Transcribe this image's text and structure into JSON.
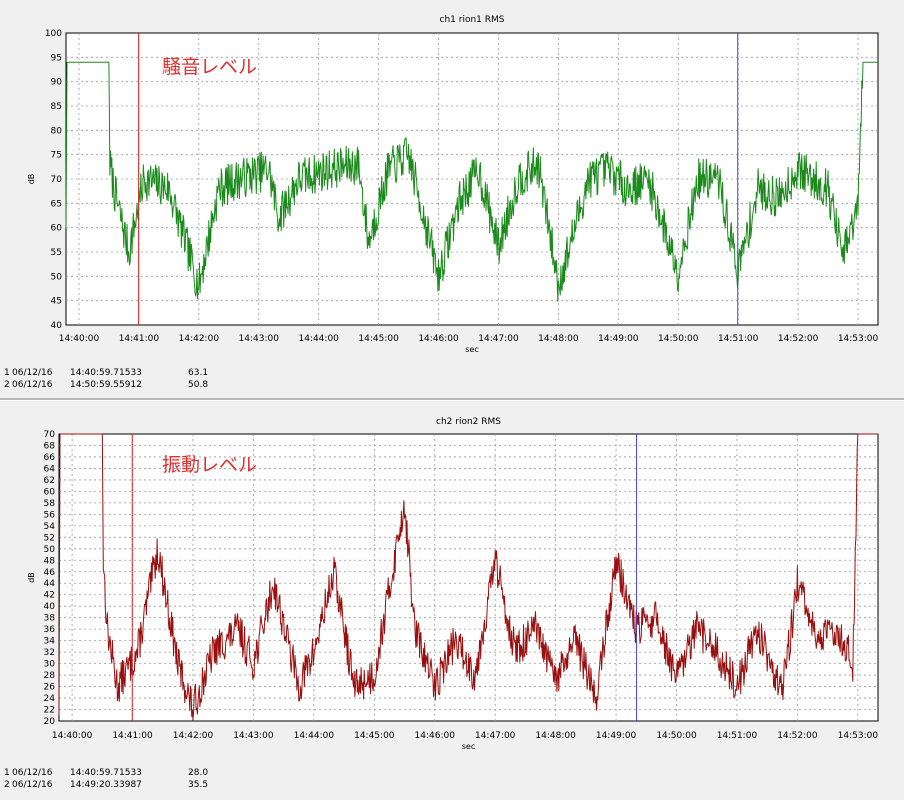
{
  "chart_data": [
    {
      "type": "line",
      "title": "ch1 rion1 RMS",
      "xlabel": "sec",
      "ylabel": "dB",
      "annotation": "騒音レベル",
      "ylim": [
        40,
        100
      ],
      "yticks": [
        40,
        45,
        50,
        55,
        60,
        65,
        70,
        75,
        80,
        85,
        90,
        95,
        100
      ],
      "xlim": [
        "14:39:47",
        "14:53:20"
      ],
      "xticks": [
        "14:40:00",
        "14:41:00",
        "14:42:00",
        "14:43:00",
        "14:44:00",
        "14:45:00",
        "14:46:00",
        "14:47:00",
        "14:48:00",
        "14:49:00",
        "14:50:00",
        "14:51:00",
        "14:52:00",
        "14:53:00"
      ],
      "grid": true,
      "series": [
        {
          "color": "#1a8a1a",
          "x": [
            "14:39:47",
            "14:39:48",
            "14:40:30",
            "14:40:31",
            "14:40:36",
            "14:40:50",
            "14:41:05",
            "14:41:30",
            "14:42:00",
            "14:42:20",
            "14:42:40",
            "14:43:10",
            "14:43:20",
            "14:43:40",
            "14:44:10",
            "14:44:40",
            "14:44:50",
            "14:45:10",
            "14:45:30",
            "14:46:00",
            "14:46:20",
            "14:46:40",
            "14:47:00",
            "14:47:20",
            "14:47:40",
            "14:48:00",
            "14:48:30",
            "14:48:50",
            "14:49:10",
            "14:49:30",
            "14:50:00",
            "14:50:20",
            "14:50:40",
            "14:51:00",
            "14:51:20",
            "14:51:40",
            "14:52:00",
            "14:52:30",
            "14:52:45",
            "14:53:00",
            "14:53:05",
            "14:53:20"
          ],
          "values": [
            60,
            94,
            94,
            73,
            67,
            55,
            70,
            68,
            48,
            68,
            70,
            72,
            62,
            70,
            72,
            73,
            57,
            72,
            75,
            50,
            65,
            72,
            56,
            70,
            73,
            48,
            70,
            72,
            68,
            70,
            51,
            70,
            70,
            51,
            68,
            66,
            72,
            68,
            54,
            64,
            94,
            94
          ]
        }
      ],
      "cursors": [
        {
          "color": "#e02020",
          "x": "14:40:59.71533"
        },
        {
          "color": "#4040e0",
          "x": "14:50:59.55912"
        }
      ],
      "readout": [
        {
          "index": "1",
          "date": "06/12/16",
          "time": "14:40:59.71533",
          "value": "63.1"
        },
        {
          "index": "2",
          "date": "06/12/16",
          "time": "14:50:59.55912",
          "value": "50.8"
        }
      ]
    },
    {
      "type": "line",
      "title": "ch2 rion2 RMS",
      "xlabel": "sec",
      "ylabel": "dB",
      "annotation": "振動レベル",
      "ylim": [
        20,
        70
      ],
      "yticks": [
        20,
        22,
        24,
        26,
        28,
        30,
        32,
        34,
        36,
        38,
        40,
        42,
        44,
        46,
        48,
        50,
        52,
        54,
        56,
        58,
        60,
        62,
        64,
        66,
        68,
        70
      ],
      "xlim": [
        "14:39:47",
        "14:53:20"
      ],
      "xticks": [
        "14:40:00",
        "14:41:00",
        "14:42:00",
        "14:43:00",
        "14:44:00",
        "14:45:00",
        "14:46:00",
        "14:47:00",
        "14:48:00",
        "14:49:00",
        "14:50:00",
        "14:51:00",
        "14:52:00",
        "14:53:00"
      ],
      "grid": true,
      "series": [
        {
          "color": "#9a0e0e",
          "x": [
            "14:39:47",
            "14:39:48",
            "14:40:30",
            "14:40:31",
            "14:40:35",
            "14:40:45",
            "14:41:05",
            "14:41:25",
            "14:41:45",
            "14:42:00",
            "14:42:20",
            "14:42:45",
            "14:43:00",
            "14:43:20",
            "14:43:45",
            "14:44:00",
            "14:44:20",
            "14:44:40",
            "14:45:00",
            "14:45:30",
            "14:45:40",
            "14:46:00",
            "14:46:20",
            "14:46:40",
            "14:47:00",
            "14:47:20",
            "14:47:40",
            "14:48:00",
            "14:48:20",
            "14:48:40",
            "14:49:00",
            "14:49:20",
            "14:49:40",
            "14:50:00",
            "14:50:20",
            "14:50:40",
            "14:51:00",
            "14:51:20",
            "14:51:45",
            "14:52:00",
            "14:52:20",
            "14:52:40",
            "14:52:55",
            "14:53:00",
            "14:53:20"
          ],
          "values": [
            21,
            70,
            70,
            48,
            36,
            26,
            32,
            50,
            30,
            22,
            32,
            36,
            30,
            44,
            26,
            32,
            46,
            26,
            28,
            58,
            36,
            26,
            34,
            28,
            48,
            32,
            36,
            27,
            34,
            24,
            48,
            36,
            38,
            27,
            36,
            32,
            26,
            36,
            25,
            44,
            34,
            36,
            30,
            70,
            70
          ]
        }
      ],
      "cursors": [
        {
          "color": "#e02020",
          "x": "14:40:59.71533"
        },
        {
          "color": "#4040e0",
          "x": "14:49:20.33987"
        }
      ],
      "readout": [
        {
          "index": "1",
          "date": "06/12/16",
          "time": "14:40:59.71533",
          "value": "28.0"
        },
        {
          "index": "2",
          "date": "06/12/16",
          "time": "14:49:20.33987",
          "value": "35.5"
        }
      ]
    }
  ]
}
